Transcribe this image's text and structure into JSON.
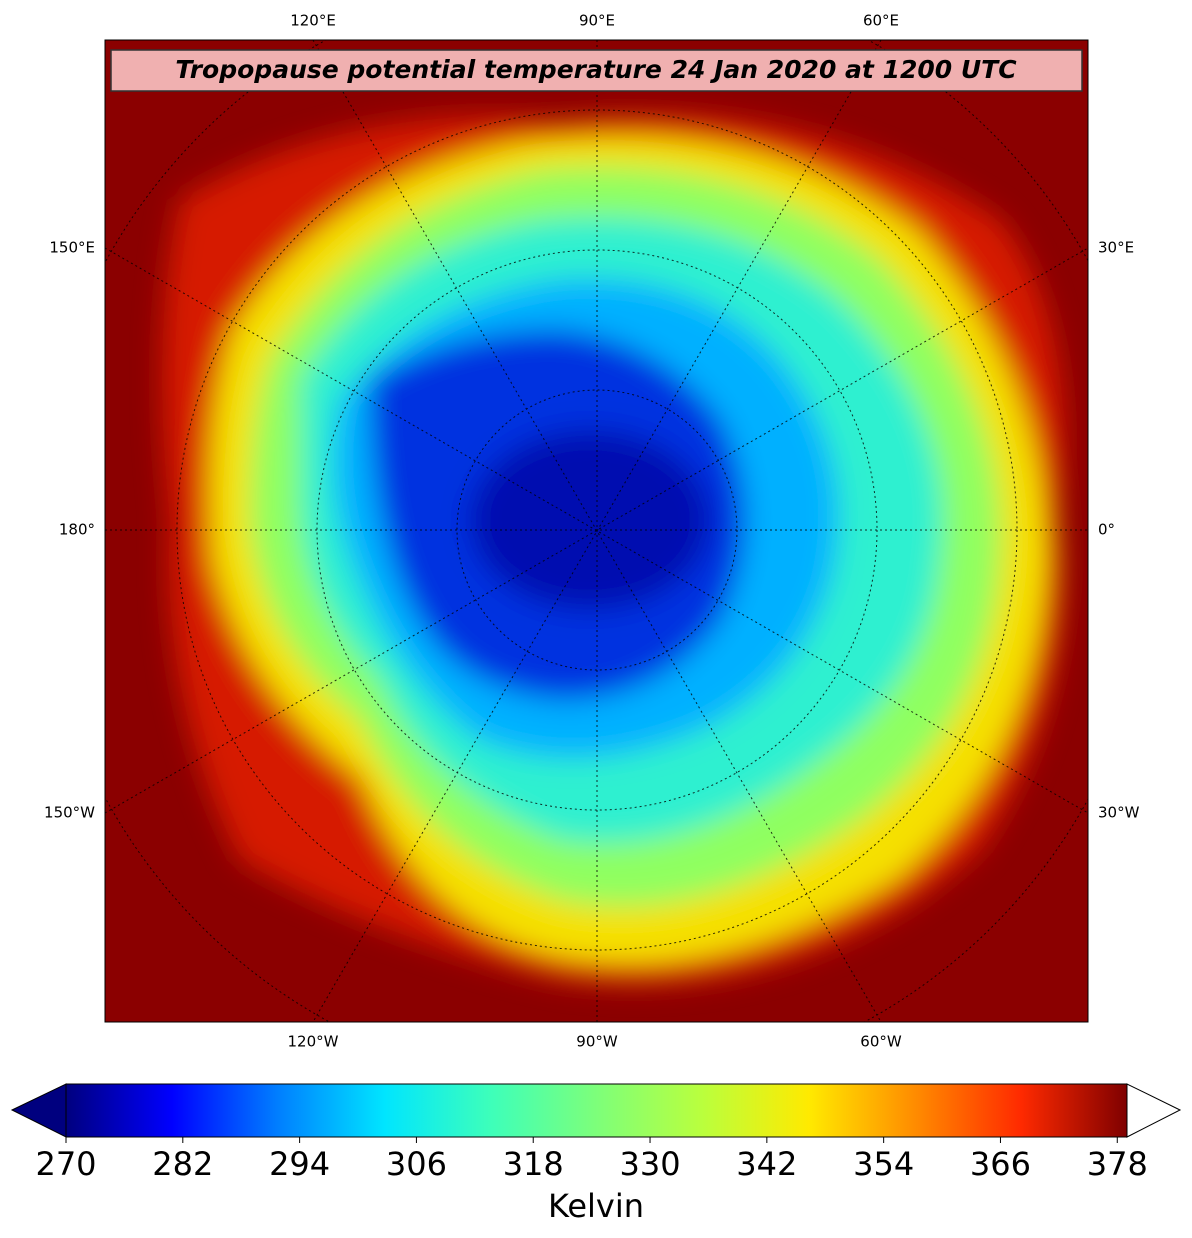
{
  "title": "Tropopause potential temperature 24 Jan 2020 at 1200 UTC",
  "lon_labels": {
    "top": [
      "120°E",
      "90°E",
      "60°E"
    ],
    "bottom": [
      "120°W",
      "90°W",
      "60°W"
    ],
    "left": [
      "150°E",
      "180°",
      "150°W"
    ],
    "right": [
      "30°E",
      "0°",
      "30°W"
    ]
  },
  "colorbar": {
    "label": "Kelvin",
    "lim": [
      270,
      379
    ],
    "ticks": [
      270,
      282,
      294,
      306,
      318,
      330,
      342,
      354,
      366,
      378
    ],
    "colormap": [
      "#00007f",
      "#0000ff",
      "#007fff",
      "#00e5ff",
      "#3dffba",
      "#7dff7a",
      "#baff3d",
      "#ffea00",
      "#ff8c00",
      "#ff2a00",
      "#7f0000"
    ]
  }
}
